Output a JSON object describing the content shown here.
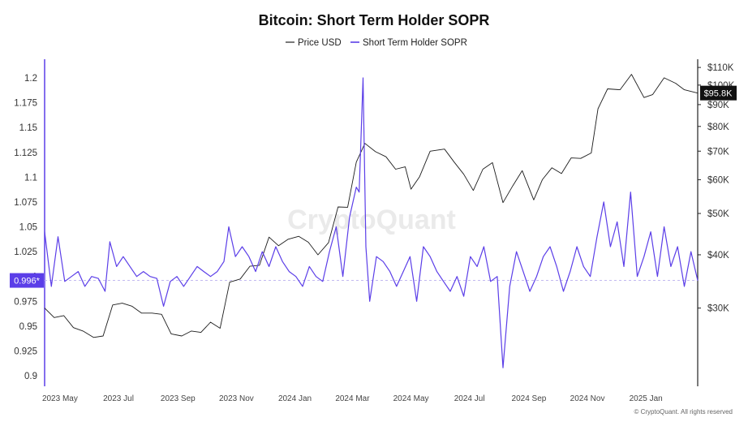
{
  "chart_data": {
    "type": "line",
    "title": "Bitcoin: Short Term Holder SOPR",
    "watermark": "CryptoQuant",
    "credit": "© CryptoQuant. All rights reserved",
    "legend": [
      {
        "name": "Price USD",
        "color": "#222222"
      },
      {
        "name": "Short Term Holder SOPR",
        "color": "#5b3ee8"
      }
    ],
    "x_ticks": [
      "2023 May",
      "2023 Jul",
      "2023 Sep",
      "2023 Nov",
      "2024 Jan",
      "2024 Mar",
      "2024 May",
      "2024 Jul",
      "2024 Sep",
      "2024 Nov",
      "2025 Jan"
    ],
    "y_left": {
      "ticks": [
        "0.9",
        "0.925",
        "0.95",
        "0.975",
        "1",
        "1.025",
        "1.05",
        "1.075",
        "1.1",
        "1.125",
        "1.15",
        "1.175",
        "1.2"
      ],
      "range": [
        0.9,
        1.2
      ],
      "current_label": "0.996*",
      "current_value": 0.996,
      "color": "#5b3ee8"
    },
    "y_right": {
      "ticks": [
        "$30K",
        "$40K",
        "$50K",
        "$60K",
        "$70K",
        "$80K",
        "$90K",
        "$100K",
        "$110K"
      ],
      "tick_values": [
        30000,
        40000,
        50000,
        60000,
        70000,
        80000,
        90000,
        100000,
        110000
      ],
      "scale": "log",
      "range": [
        21000,
        112000
      ],
      "current_label": "$95.8K",
      "current_value": 95800
    },
    "x_range": [
      "2023-04-15",
      "2025-02-24"
    ],
    "price_series": {
      "name": "Price USD",
      "x": [
        "2023-04-15",
        "2023-04-25",
        "2023-05-05",
        "2023-05-15",
        "2023-05-25",
        "2023-06-05",
        "2023-06-15",
        "2023-06-25",
        "2023-07-05",
        "2023-07-15",
        "2023-07-25",
        "2023-08-05",
        "2023-08-15",
        "2023-08-25",
        "2023-09-05",
        "2023-09-15",
        "2023-09-25",
        "2023-10-05",
        "2023-10-15",
        "2023-10-25",
        "2023-11-05",
        "2023-11-15",
        "2023-11-25",
        "2023-12-05",
        "2023-12-15",
        "2023-12-25",
        "2024-01-05",
        "2024-01-15",
        "2024-01-25",
        "2024-02-05",
        "2024-02-15",
        "2024-02-25",
        "2024-03-05",
        "2024-03-14",
        "2024-03-25",
        "2024-04-05",
        "2024-04-15",
        "2024-04-25",
        "2024-05-01",
        "2024-05-10",
        "2024-05-21",
        "2024-06-05",
        "2024-06-15",
        "2024-06-25",
        "2024-07-05",
        "2024-07-15",
        "2024-07-25",
        "2024-08-05",
        "2024-08-15",
        "2024-08-25",
        "2024-09-06",
        "2024-09-15",
        "2024-09-25",
        "2024-10-05",
        "2024-10-15",
        "2024-10-25",
        "2024-11-05",
        "2024-11-12",
        "2024-11-22",
        "2024-12-05",
        "2024-12-17",
        "2024-12-30",
        "2025-01-08",
        "2025-01-20",
        "2025-02-01",
        "2025-02-10",
        "2025-02-24"
      ],
      "values": [
        30000,
        28500,
        28800,
        27000,
        26500,
        25600,
        25800,
        30500,
        30800,
        30300,
        29200,
        29200,
        29000,
        26100,
        25800,
        26500,
        26300,
        27800,
        26900,
        34500,
        35100,
        37600,
        37800,
        44000,
        42000,
        43500,
        44200,
        42800,
        40000,
        42700,
        51800,
        51700,
        66000,
        73000,
        69800,
        67900,
        63500,
        64300,
        57000,
        61000,
        70000,
        70800,
        66000,
        61800,
        56600,
        63500,
        65800,
        53000,
        58000,
        63000,
        53800,
        60000,
        64000,
        62000,
        67500,
        67300,
        69300,
        88000,
        98000,
        97500,
        106000,
        93500,
        95000,
        104000,
        101000,
        97500,
        95800
      ]
    },
    "sopr_series": {
      "name": "Short Term Holder SOPR",
      "x": [
        "2023-04-15",
        "2023-04-22",
        "2023-04-29",
        "2023-05-06",
        "2023-05-13",
        "2023-05-20",
        "2023-05-27",
        "2023-06-03",
        "2023-06-10",
        "2023-06-17",
        "2023-06-22",
        "2023-06-29",
        "2023-07-06",
        "2023-07-13",
        "2023-07-20",
        "2023-07-27",
        "2023-08-03",
        "2023-08-10",
        "2023-08-17",
        "2023-08-24",
        "2023-08-31",
        "2023-09-07",
        "2023-09-14",
        "2023-09-21",
        "2023-09-28",
        "2023-10-05",
        "2023-10-12",
        "2023-10-19",
        "2023-10-24",
        "2023-10-31",
        "2023-11-07",
        "2023-11-14",
        "2023-11-21",
        "2023-11-28",
        "2023-12-05",
        "2023-12-12",
        "2023-12-19",
        "2023-12-26",
        "2024-01-02",
        "2024-01-09",
        "2024-01-16",
        "2024-01-23",
        "2024-01-30",
        "2024-02-06",
        "2024-02-13",
        "2024-02-20",
        "2024-02-27",
        "2024-03-05",
        "2024-03-08",
        "2024-03-12",
        "2024-03-15",
        "2024-03-19",
        "2024-03-26",
        "2024-04-02",
        "2024-04-09",
        "2024-04-16",
        "2024-04-23",
        "2024-04-30",
        "2024-05-07",
        "2024-05-14",
        "2024-05-21",
        "2024-05-28",
        "2024-06-04",
        "2024-06-11",
        "2024-06-18",
        "2024-06-25",
        "2024-07-02",
        "2024-07-09",
        "2024-07-16",
        "2024-07-23",
        "2024-07-30",
        "2024-08-05",
        "2024-08-12",
        "2024-08-19",
        "2024-08-26",
        "2024-09-02",
        "2024-09-09",
        "2024-09-16",
        "2024-09-23",
        "2024-09-30",
        "2024-10-07",
        "2024-10-14",
        "2024-10-21",
        "2024-10-28",
        "2024-11-04",
        "2024-11-11",
        "2024-11-18",
        "2024-11-25",
        "2024-12-02",
        "2024-12-09",
        "2024-12-16",
        "2024-12-23",
        "2024-12-30",
        "2025-01-06",
        "2025-01-13",
        "2025-01-20",
        "2025-01-27",
        "2025-02-03",
        "2025-02-10",
        "2025-02-17",
        "2025-02-24"
      ],
      "values": [
        1.045,
        0.99,
        1.04,
        0.995,
        1.0,
        1.005,
        0.99,
        1.0,
        0.998,
        0.985,
        1.035,
        1.01,
        1.02,
        1.01,
        1.0,
        1.005,
        1.0,
        0.998,
        0.97,
        0.995,
        1.0,
        0.99,
        1.0,
        1.01,
        1.005,
        1.0,
        1.005,
        1.015,
        1.05,
        1.02,
        1.03,
        1.02,
        1.005,
        1.025,
        1.01,
        1.03,
        1.015,
        1.005,
        1.0,
        0.99,
        1.01,
        1.0,
        0.995,
        1.025,
        1.05,
        1.0,
        1.06,
        1.09,
        1.085,
        1.2,
        1.03,
        0.975,
        1.02,
        1.015,
        1.005,
        0.99,
        1.005,
        1.02,
        0.975,
        1.03,
        1.02,
        1.005,
        0.995,
        0.985,
        1.0,
        0.98,
        1.02,
        1.01,
        1.03,
        0.995,
        1.0,
        0.908,
        0.99,
        1.025,
        1.005,
        0.985,
        1.0,
        1.02,
        1.03,
        1.01,
        0.985,
        1.005,
        1.03,
        1.01,
        1.0,
        1.04,
        1.075,
        1.03,
        1.055,
        1.01,
        1.085,
        1.0,
        1.02,
        1.045,
        1.0,
        1.05,
        1.01,
        1.03,
        0.99,
        1.025,
        0.996
      ]
    }
  }
}
